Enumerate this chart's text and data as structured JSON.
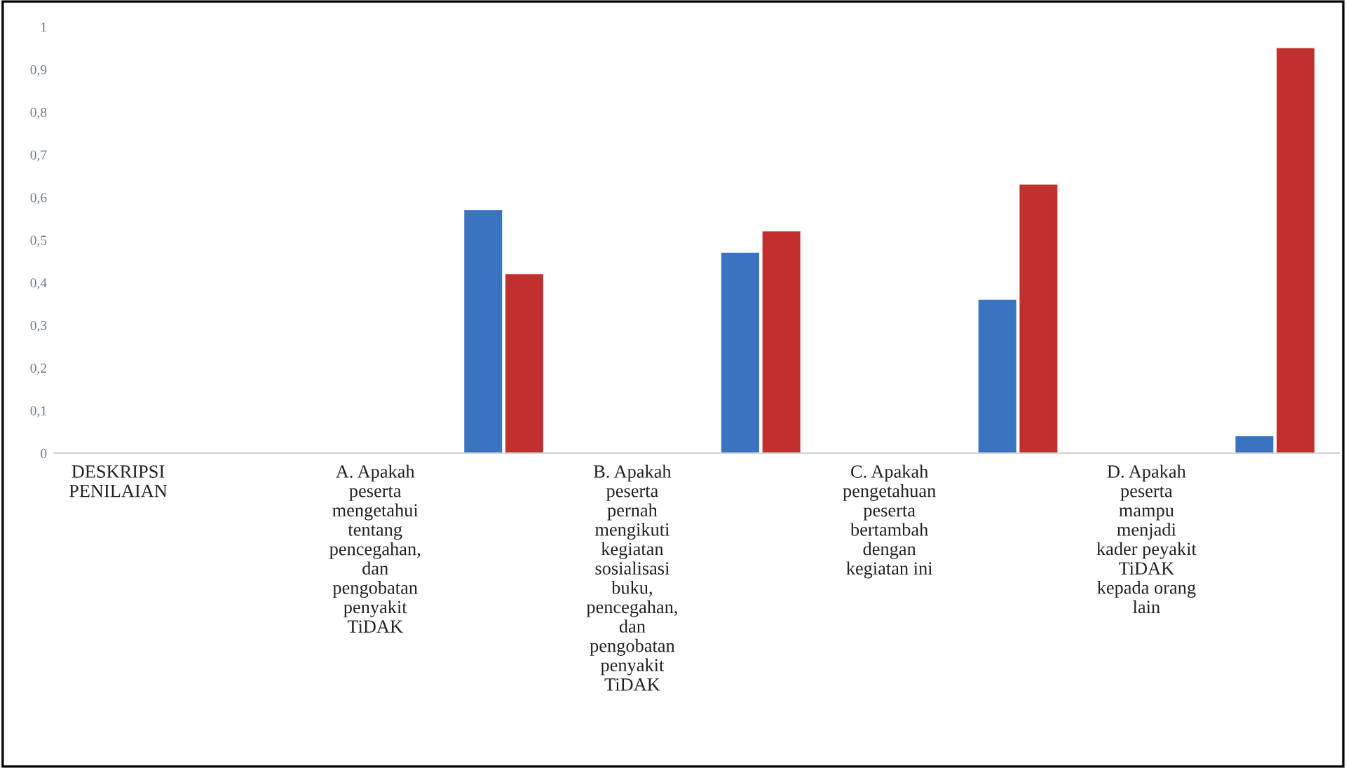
{
  "chart_data": {
    "type": "bar",
    "categories": [
      "DESKRIPSI\nPENILAIAN",
      null,
      "A. Apakah\npeserta\nmengetahui\ntentang\npencegahan,\ndan\npengobatan\npenyakit\nTiDAK",
      null,
      "B. Apakah\npeserta\npernah\nmengikuti\nkegiatan\nsosialisasi\nbuku,\npencegahan,\ndan\npengobatan\npenyakit\nTiDAK",
      null,
      "C. Apakah\npengetahuan\npeserta\nbertambah\ndengan\nkegiatan ini",
      null,
      "D. Apakah\npeserta\nmampu\nmenjadi\nkader peyakit\nTiDAK\nkepada orang\nlain",
      null
    ],
    "series": [
      {
        "color": "#3a73c0",
        "values": [
          null,
          null,
          null,
          0.57,
          null,
          0.47,
          null,
          0.36,
          null,
          0.04
        ]
      },
      {
        "color": "#c0302f",
        "values": [
          null,
          null,
          null,
          0.42,
          null,
          0.52,
          null,
          0.63,
          null,
          0.95
        ]
      }
    ],
    "ylim": [
      0,
      1
    ],
    "yticks": [
      0,
      {
        "value": 0.1,
        "label": "0,1"
      },
      {
        "value": 0.2,
        "label": "0,2"
      },
      {
        "value": 0.3,
        "label": "0,3"
      },
      {
        "value": 0.4,
        "label": "0,4"
      },
      {
        "value": 0.5,
        "label": "0,5"
      },
      {
        "value": 0.6,
        "label": "0,6"
      },
      {
        "value": 0.7,
        "label": "0,7"
      },
      {
        "value": 0.8,
        "label": "0,8"
      },
      {
        "value": 0.9,
        "label": "0,9"
      },
      1
    ],
    "grid": false,
    "legend": false
  }
}
